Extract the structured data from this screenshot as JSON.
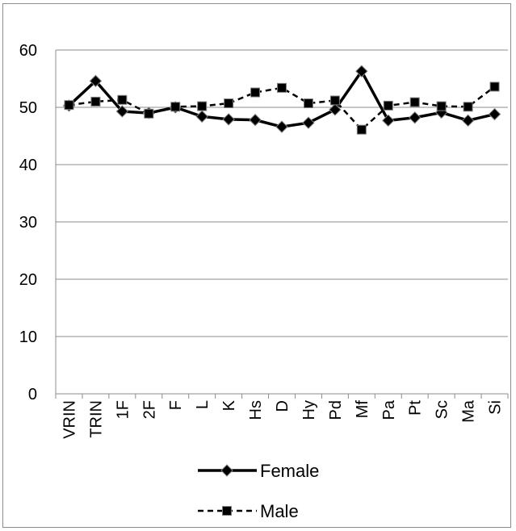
{
  "chart_data": {
    "type": "line",
    "title": "",
    "xlabel": "",
    "ylabel": "",
    "ylim": [
      0,
      60
    ],
    "yticks": [
      0,
      10,
      20,
      30,
      40,
      50,
      60
    ],
    "grid": true,
    "legend_placement": "bottom",
    "categories": [
      "VRIN",
      "TRIN",
      "1F",
      "2F",
      "F",
      "L",
      "K",
      "Hs",
      "D",
      "Hy",
      "Pd",
      "Mf",
      "Pa",
      "Pt",
      "Sc",
      "Ma",
      "Si"
    ],
    "series": [
      {
        "name": "Female",
        "line_style": "solid",
        "marker": "diamond",
        "color": "#000000",
        "values": [
          50.3,
          54.6,
          49.3,
          49.0,
          50.0,
          48.4,
          47.9,
          47.8,
          46.6,
          47.3,
          49.6,
          56.3,
          47.7,
          48.2,
          49.1,
          47.7,
          48.8
        ]
      },
      {
        "name": "Male",
        "line_style": "dashed",
        "marker": "square",
        "color": "#000000",
        "values": [
          50.4,
          51.0,
          51.3,
          48.9,
          50.1,
          50.2,
          50.7,
          52.6,
          53.4,
          50.7,
          51.2,
          46.1,
          50.3,
          50.9,
          50.2,
          50.1,
          53.6
        ]
      }
    ]
  }
}
